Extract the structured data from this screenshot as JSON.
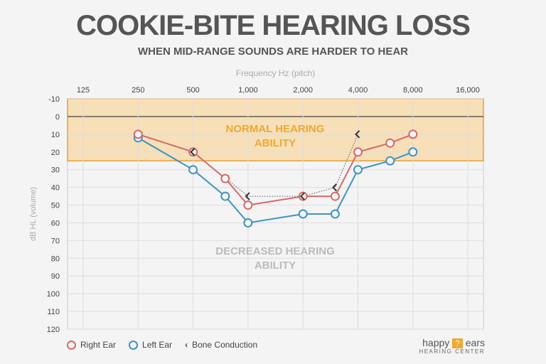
{
  "title": "COOKIE-BITE HEARING LOSS",
  "subtitle": "WHEN MID-RANGE SOUNDS ARE HARDER TO HEAR",
  "chart_data": {
    "type": "line",
    "xlabel": "Frequency Hz (pitch)",
    "ylabel": "dB HL (volume)",
    "x_scale": "log2",
    "x_ticks": [
      125,
      250,
      500,
      1000,
      2000,
      4000,
      8000,
      16000
    ],
    "x_tick_labels": [
      "125",
      "250",
      "500",
      "1,000",
      "2,000",
      "4,000",
      "8,000",
      "16,000"
    ],
    "y_ticks": [
      -10,
      0,
      10,
      20,
      30,
      40,
      50,
      60,
      70,
      80,
      90,
      100,
      110,
      120
    ],
    "ylim": [
      -10,
      120
    ],
    "y_inverted": true,
    "grid": true,
    "regions": [
      {
        "label_lines": [
          "NORMAL HEARING",
          "ABILITY"
        ],
        "from": -10,
        "to": 25,
        "color": "#f7dfb8",
        "border": "#e8a030",
        "text_color": "#f0a830"
      },
      {
        "label_lines": [
          "DECREASED HEARING",
          "ABILITY"
        ],
        "color": "#bbbbbb"
      }
    ],
    "series": [
      {
        "name": "Right Ear",
        "color": "#d46a6a",
        "marker": "circle",
        "x": [
          250,
          500,
          750,
          1000,
          2000,
          3000,
          4000,
          6000,
          8000
        ],
        "y": [
          10,
          20,
          35,
          50,
          45,
          45,
          20,
          15,
          10
        ]
      },
      {
        "name": "Left Ear",
        "color": "#3f93c0",
        "marker": "circle",
        "x": [
          250,
          500,
          750,
          1000,
          2000,
          3000,
          4000,
          6000,
          8000
        ],
        "y": [
          12,
          30,
          45,
          60,
          55,
          55,
          30,
          25,
          20
        ]
      },
      {
        "name": "Bone Conduction",
        "color": "#444444",
        "marker": "chevron-left",
        "line": "dotted",
        "x": [
          500,
          1000,
          2000,
          3000,
          4000
        ],
        "y": [
          20,
          45,
          45,
          40,
          10
        ]
      }
    ],
    "legend_placement": "bottom-left"
  },
  "logo": {
    "word1": "happy",
    "word2": "ears",
    "line2": "HEARING CENTER",
    "accent": "#f0a830"
  }
}
